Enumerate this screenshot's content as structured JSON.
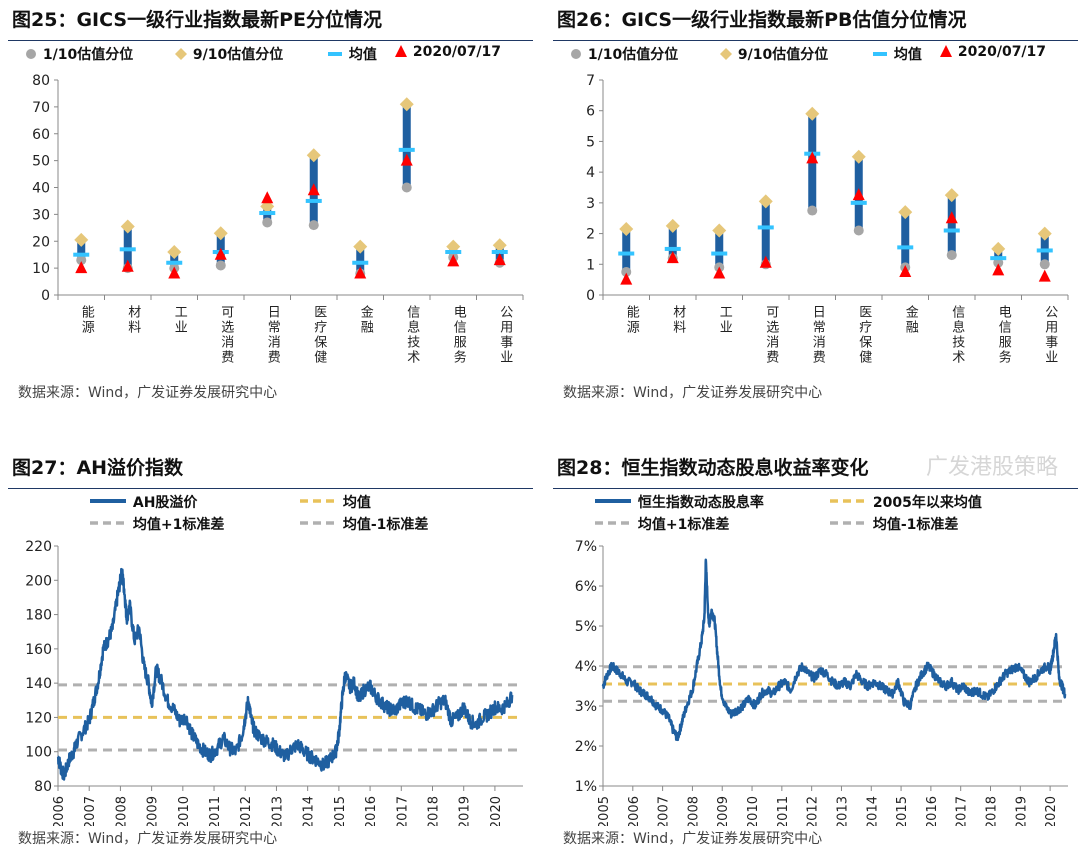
{
  "charts": {
    "c25": {
      "title": "图25：GICS一级行业指数最新PE分位情况",
      "source": "数据来源：Wind，广发证券发展研究中心",
      "legend": {
        "p10": "1/10估值分位",
        "p90": "9/10估值分位",
        "mean": "均值",
        "latest": "2020/07/17"
      }
    },
    "c26": {
      "title": "图26：GICS一级行业指数最新PB估值分位情况",
      "source": "数据来源：Wind，广发证券发展研究中心",
      "legend": {
        "p10": "1/10估值分位",
        "p90": "9/10估值分位",
        "mean": "均值",
        "latest": "2020/07/17"
      }
    },
    "c27": {
      "title": "图27：AH溢价指数",
      "source": "数据来源：Wind，广发证券发展研究中心",
      "legend": {
        "series": "AH股溢价",
        "mean": "均值",
        "plus": "均值+1标准差",
        "minus": "均值-1标准差"
      }
    },
    "c28": {
      "title": "图28：恒生指数动态股息收益率变化",
      "source": "数据来源：Wind，广发证券发展研究中心",
      "legend": {
        "series": "恒生指数动态股息率",
        "mean": "2005年以来均值",
        "plus": "均值+1标准差",
        "minus": "均值-1标准差"
      },
      "watermark": "广发港股策略"
    }
  },
  "colors": {
    "bar": "#1f5fa0",
    "p10": "#a6a6a6",
    "p90": "#e6c77a",
    "mean": "#33c3ff",
    "latest": "#ff0000",
    "line": "#1f5fa0",
    "meanline": "#e8c25a",
    "sdline": "#b0b0b0"
  },
  "chart_data": [
    {
      "type": "range",
      "title": "图25：GICS一级行业指数最新PE分位情况",
      "categories": [
        "能源",
        "材料",
        "工业",
        "可选消费",
        "日常消费",
        "医疗保健",
        "金融",
        "信息技术",
        "电信服务",
        "公用事业"
      ],
      "p10": [
        13,
        10,
        10,
        11,
        27,
        26,
        8,
        40,
        14,
        12
      ],
      "p90": [
        20.5,
        25.5,
        16,
        23,
        33,
        52,
        18,
        71,
        18,
        18.5
      ],
      "mean": [
        15,
        17,
        12,
        16,
        30.5,
        35,
        12,
        54,
        16,
        16
      ],
      "latest": [
        10,
        10.5,
        8,
        15,
        36,
        39,
        8,
        50,
        12.5,
        13
      ],
      "ylim": [
        0,
        80
      ],
      "yticks": [
        0,
        10,
        20,
        30,
        40,
        50,
        60,
        70,
        80
      ]
    },
    {
      "type": "range",
      "title": "图26：GICS一级行业指数最新PB估值分位情况",
      "categories": [
        "能源",
        "材料",
        "工业",
        "可选消费",
        "日常消费",
        "医疗保健",
        "金融",
        "信息技术",
        "电信服务",
        "公用事业"
      ],
      "p10": [
        0.75,
        1.2,
        0.9,
        1.0,
        2.75,
        2.1,
        0.9,
        1.3,
        1.05,
        1.0
      ],
      "p90": [
        2.15,
        2.25,
        2.1,
        3.05,
        5.9,
        4.5,
        2.7,
        3.25,
        1.5,
        2.0
      ],
      "mean": [
        1.35,
        1.5,
        1.35,
        2.2,
        4.6,
        3.0,
        1.55,
        2.1,
        1.2,
        1.45
      ],
      "latest": [
        0.5,
        1.2,
        0.7,
        1.05,
        4.45,
        3.25,
        0.75,
        2.5,
        0.8,
        0.6
      ],
      "ylim": [
        0,
        7
      ],
      "yticks": [
        0,
        1,
        2,
        3,
        4,
        5,
        6,
        7
      ]
    },
    {
      "type": "line",
      "title": "图27：AH溢价指数",
      "x": [
        2006.0,
        2006.1,
        2006.2,
        2006.35,
        2006.5,
        2006.6,
        2006.8,
        2007.0,
        2007.15,
        2007.3,
        2007.45,
        2007.6,
        2007.75,
        2007.9,
        2008.0,
        2008.05,
        2008.12,
        2008.2,
        2008.3,
        2008.45,
        2008.6,
        2008.75,
        2008.9,
        2009.0,
        2009.15,
        2009.3,
        2009.5,
        2009.7,
        2009.9,
        2010.1,
        2010.3,
        2010.5,
        2010.7,
        2010.9,
        2011.1,
        2011.3,
        2011.5,
        2011.7,
        2011.9,
        2012.0,
        2012.1,
        2012.2,
        2012.3,
        2012.5,
        2012.7,
        2012.9,
        2013.1,
        2013.3,
        2013.5,
        2013.7,
        2013.9,
        2014.1,
        2014.3,
        2014.5,
        2014.7,
        2014.9,
        2015.0,
        2015.1,
        2015.2,
        2015.35,
        2015.5,
        2015.65,
        2015.8,
        2016.0,
        2016.2,
        2016.4,
        2016.6,
        2016.8,
        2017.0,
        2017.2,
        2017.4,
        2017.6,
        2017.8,
        2018.0,
        2018.2,
        2018.4,
        2018.6,
        2018.8,
        2019.0,
        2019.2,
        2019.4,
        2019.6,
        2019.8,
        2020.0,
        2020.2,
        2020.4,
        2020.55
      ],
      "y": [
        97,
        90,
        86,
        95,
        100,
        105,
        112,
        118,
        130,
        142,
        160,
        165,
        172,
        190,
        200,
        205,
        195,
        178,
        185,
        165,
        172,
        150,
        140,
        128,
        148,
        142,
        130,
        125,
        118,
        120,
        110,
        104,
        100,
        98,
        102,
        108,
        102,
        100,
        110,
        120,
        130,
        118,
        112,
        108,
        106,
        104,
        100,
        97,
        102,
        104,
        100,
        97,
        95,
        92,
        95,
        100,
        110,
        130,
        145,
        138,
        140,
        130,
        136,
        138,
        132,
        128,
        125,
        124,
        128,
        130,
        126,
        124,
        122,
        124,
        128,
        130,
        118,
        120,
        126,
        118,
        116,
        120,
        122,
        126,
        125,
        128,
        133
      ],
      "mean": 120,
      "mean_plus_sd": 139,
      "mean_minus_sd": 101,
      "xlim": [
        2006,
        2020.9
      ],
      "ylim": [
        80,
        220
      ],
      "xticks": [
        "2006",
        "2007",
        "2008",
        "2009",
        "2010",
        "2011",
        "2012",
        "2013",
        "2014",
        "2015",
        "2016",
        "2017",
        "2018",
        "2019",
        "2020"
      ],
      "yticks": [
        80,
        100,
        120,
        140,
        160,
        180,
        200,
        220
      ]
    },
    {
      "type": "line",
      "title": "图28：恒生指数动态股息收益率变化",
      "x": [
        2005.0,
        2005.15,
        2005.3,
        2005.45,
        2005.6,
        2005.8,
        2006.0,
        2006.2,
        2006.4,
        2006.6,
        2006.8,
        2007.0,
        2007.2,
        2007.35,
        2007.5,
        2007.65,
        2007.8,
        2008.0,
        2008.15,
        2008.3,
        2008.4,
        2008.45,
        2008.55,
        2008.65,
        2008.75,
        2008.85,
        2008.95,
        2009.1,
        2009.3,
        2009.5,
        2009.7,
        2009.9,
        2010.1,
        2010.3,
        2010.5,
        2010.7,
        2010.9,
        2011.1,
        2011.3,
        2011.5,
        2011.7,
        2011.9,
        2012.1,
        2012.3,
        2012.5,
        2012.7,
        2012.9,
        2013.1,
        2013.3,
        2013.5,
        2013.7,
        2013.9,
        2014.1,
        2014.3,
        2014.5,
        2014.7,
        2014.9,
        2015.1,
        2015.3,
        2015.5,
        2015.7,
        2015.9,
        2016.1,
        2016.3,
        2016.5,
        2016.7,
        2016.9,
        2017.1,
        2017.3,
        2017.5,
        2017.7,
        2017.9,
        2018.1,
        2018.3,
        2018.5,
        2018.7,
        2018.9,
        2019.1,
        2019.3,
        2019.5,
        2019.7,
        2019.9,
        2020.0,
        2020.1,
        2020.2,
        2020.3,
        2020.4,
        2020.5
      ],
      "y": [
        3.5,
        3.8,
        4.0,
        3.9,
        3.8,
        3.6,
        3.6,
        3.4,
        3.3,
        3.2,
        3.0,
        2.9,
        2.7,
        2.4,
        2.2,
        2.6,
        3.0,
        3.4,
        4.0,
        4.6,
        5.2,
        6.6,
        5.0,
        5.4,
        5.1,
        4.2,
        3.4,
        3.0,
        2.8,
        2.9,
        3.0,
        3.2,
        3.0,
        3.3,
        3.4,
        3.3,
        3.5,
        3.6,
        3.4,
        3.8,
        4.0,
        3.8,
        3.7,
        3.9,
        3.8,
        3.6,
        3.5,
        3.6,
        3.5,
        3.8,
        3.6,
        3.5,
        3.6,
        3.5,
        3.4,
        3.3,
        3.6,
        3.1,
        3.0,
        3.5,
        3.8,
        4.0,
        3.8,
        3.6,
        3.5,
        3.6,
        3.4,
        3.5,
        3.3,
        3.4,
        3.3,
        3.2,
        3.4,
        3.6,
        3.8,
        3.9,
        4.0,
        3.8,
        3.6,
        3.7,
        3.9,
        4.0,
        3.9,
        4.3,
        4.8,
        3.7,
        3.5,
        3.3
      ],
      "mean": 3.55,
      "mean_plus_sd": 3.98,
      "mean_minus_sd": 3.12,
      "xlim": [
        2005,
        2020.6
      ],
      "ylim": [
        1,
        7
      ],
      "xticks": [
        "2005",
        "2006",
        "2007",
        "2008",
        "2009",
        "2010",
        "2011",
        "2012",
        "2013",
        "2014",
        "2015",
        "2016",
        "2017",
        "2018",
        "2019",
        "2020"
      ],
      "yticks": [
        "1%",
        "2%",
        "3%",
        "4%",
        "5%",
        "6%",
        "7%"
      ]
    }
  ]
}
